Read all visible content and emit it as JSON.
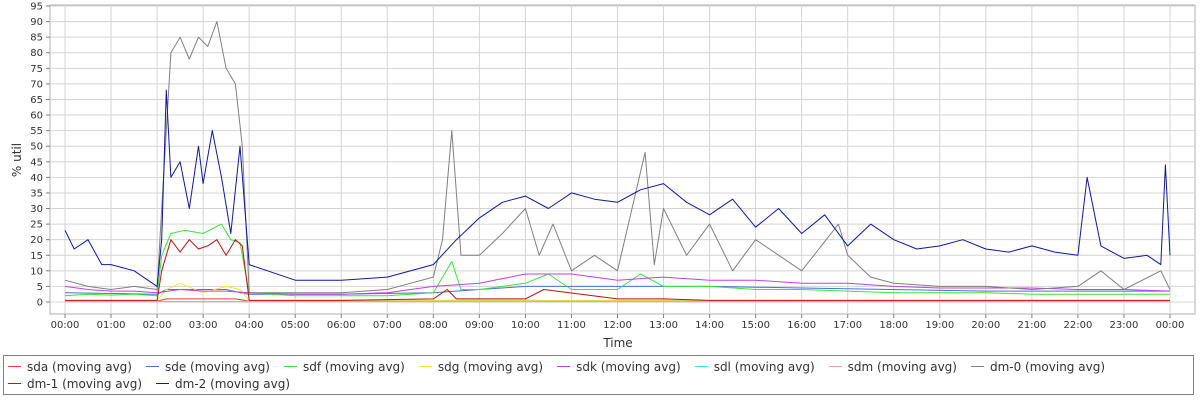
{
  "chart_data": {
    "type": "line",
    "xlabel": "Time",
    "ylabel": "% util",
    "ylim": [
      0,
      95
    ],
    "yticks": [
      0,
      5,
      10,
      15,
      20,
      25,
      30,
      35,
      40,
      45,
      50,
      55,
      60,
      65,
      70,
      75,
      80,
      85,
      90,
      95
    ],
    "xticks": [
      "00:00",
      "01:00",
      "02:00",
      "03:00",
      "04:00",
      "05:00",
      "06:00",
      "07:00",
      "08:00",
      "09:00",
      "10:00",
      "11:00",
      "12:00",
      "13:00",
      "14:00",
      "15:00",
      "16:00",
      "17:00",
      "18:00",
      "19:00",
      "20:00",
      "21:00",
      "22:00",
      "23:00",
      "00:00"
    ],
    "xlim_hours": [
      0,
      24
    ],
    "grid": true,
    "legend_position": "bottom",
    "series": [
      {
        "name": "sda (moving avg)",
        "color": "#e8403a",
        "x": [
          0,
          2,
          2.2,
          3,
          3.7,
          4,
          6,
          8,
          8.3,
          10,
          10.2,
          11,
          12,
          13,
          14,
          16,
          18,
          20,
          22,
          23.5,
          24
        ],
        "y": [
          0.3,
          0.3,
          1,
          1,
          1,
          0.3,
          0.3,
          0.3,
          0.5,
          0.5,
          0.5,
          0.3,
          0.3,
          0.5,
          0.3,
          0.3,
          0.3,
          0.3,
          0.3,
          0.3,
          0.3
        ]
      },
      {
        "name": "sde (moving avg)",
        "color": "#4a6fd8",
        "x": [
          0,
          2,
          2.2,
          3,
          3.5,
          3.8,
          4,
          6,
          8,
          9,
          10,
          12,
          14,
          16,
          18,
          20,
          22,
          24
        ],
        "y": [
          3,
          2.5,
          4,
          4,
          4,
          3,
          2.5,
          2.5,
          3,
          4,
          5,
          5,
          5,
          4.5,
          4,
          3.5,
          3.5,
          3.5
        ]
      },
      {
        "name": "sdf (moving avg)",
        "color": "#3ce23c",
        "x": [
          0,
          0.5,
          1,
          1.5,
          2,
          2.1,
          2.3,
          2.6,
          3,
          3.4,
          3.6,
          3.8,
          4,
          5,
          6,
          7,
          8,
          8.4,
          8.6,
          9,
          10,
          10.5,
          11,
          12,
          12.5,
          13,
          14,
          15,
          16,
          17,
          18,
          19,
          20,
          21,
          22,
          23,
          24
        ],
        "y": [
          2,
          2.5,
          2.2,
          2.5,
          2,
          15,
          22,
          23,
          22,
          25,
          20,
          19,
          3,
          2,
          2,
          2,
          3,
          13,
          4,
          4,
          6,
          9,
          4,
          4,
          9,
          5,
          5,
          4,
          4,
          3.5,
          3,
          3,
          3,
          2.5,
          2.5,
          2.5,
          2.5
        ]
      },
      {
        "name": "sdg (moving avg)",
        "color": "#f5e73c",
        "x": [
          0,
          2,
          2.2,
          2.5,
          3,
          3.5,
          3.8,
          4,
          6,
          8,
          10,
          12,
          14,
          16,
          18,
          20,
          22,
          24
        ],
        "y": [
          0.5,
          0.5,
          4,
          6,
          3,
          5,
          4,
          0.5,
          0.5,
          0.5,
          0.5,
          0.5,
          0.5,
          0.5,
          0.5,
          0.5,
          0.5,
          0.5
        ]
      },
      {
        "name": "sdk (moving avg)",
        "color": "#c040e8",
        "x": [
          0,
          0.5,
          1,
          1.5,
          2,
          2.5,
          3,
          3.5,
          4,
          5,
          6,
          7,
          8,
          9,
          10,
          11,
          12,
          13,
          14,
          15,
          16,
          17,
          18,
          19,
          20,
          21,
          22,
          23,
          24
        ],
        "y": [
          5,
          4,
          3.5,
          3.5,
          3,
          4,
          3.5,
          3.5,
          3,
          2.5,
          2.5,
          3,
          5,
          6,
          9,
          9,
          7,
          8,
          7,
          7,
          6,
          6,
          5,
          4.5,
          4.5,
          4.5,
          4,
          4,
          3.5
        ]
      },
      {
        "name": "sdl (moving avg)",
        "color": "#3ce8e8",
        "x": [
          0,
          4,
          8,
          12,
          16,
          20,
          24
        ],
        "y": [
          0.2,
          0.2,
          0.2,
          0.2,
          0.2,
          0.2,
          0.2
        ]
      },
      {
        "name": "sdm (moving avg)",
        "color": "#f0a0a0",
        "x": [
          0,
          4,
          8,
          12,
          16,
          20,
          24
        ],
        "y": [
          0.1,
          0.1,
          0.1,
          0.1,
          0.1,
          0.1,
          0.1
        ]
      },
      {
        "name": "dm-0 (moving avg)",
        "color": "#808080",
        "x": [
          0,
          0.5,
          1,
          1.5,
          2,
          2.1,
          2.3,
          2.5,
          2.7,
          2.9,
          3.1,
          3.3,
          3.5,
          3.7,
          3.85,
          4,
          5,
          6,
          7,
          7.5,
          8,
          8.2,
          8.4,
          8.6,
          9,
          9.5,
          10,
          10.3,
          10.6,
          11,
          11.5,
          12,
          12.6,
          12.8,
          13,
          13.5,
          14,
          14.5,
          15,
          16,
          16.8,
          17,
          17.5,
          18,
          19,
          20,
          21,
          22,
          22.5,
          23,
          23.8,
          24
        ],
        "y": [
          7,
          5,
          4,
          5,
          4,
          30,
          80,
          85,
          78,
          85,
          82,
          90,
          75,
          70,
          50,
          3,
          3,
          3,
          4,
          6,
          8,
          20,
          55,
          15,
          15,
          22,
          30,
          15,
          25,
          10,
          15,
          10,
          48,
          12,
          30,
          15,
          25,
          10,
          20,
          10,
          25,
          15,
          8,
          6,
          5,
          5,
          4,
          5,
          10,
          4,
          10,
          4
        ]
      },
      {
        "name": "dm-1 (moving avg)",
        "color": "#b81414",
        "x": [
          0,
          2,
          2.1,
          2.3,
          2.5,
          2.7,
          2.9,
          3.1,
          3.3,
          3.5,
          3.7,
          3.85,
          4,
          6,
          8,
          8.3,
          8.5,
          10,
          10.4,
          12,
          13,
          14,
          16,
          18,
          20,
          22,
          24
        ],
        "y": [
          0.5,
          0.5,
          10,
          20,
          16,
          20,
          17,
          18,
          20,
          15,
          20,
          18,
          0.5,
          0.5,
          1,
          4,
          1,
          1,
          4,
          1,
          1,
          0.5,
          0.5,
          0.5,
          0.5,
          0.5,
          0.5
        ]
      },
      {
        "name": "dm-2 (moving avg)",
        "color": "#10189e",
        "x": [
          0,
          0.2,
          0.5,
          0.8,
          1,
          1.5,
          2,
          2.1,
          2.2,
          2.3,
          2.5,
          2.7,
          2.9,
          3,
          3.2,
          3.4,
          3.6,
          3.8,
          4,
          5,
          6,
          7,
          8,
          8.5,
          9,
          9.5,
          10,
          10.5,
          11,
          11.5,
          12,
          12.5,
          13,
          13.5,
          14,
          14.5,
          15,
          15.5,
          16,
          16.5,
          17,
          17.5,
          18,
          18.5,
          19,
          19.5,
          20,
          20.5,
          21,
          21.5,
          22,
          22.2,
          22.5,
          23,
          23.5,
          23.8,
          23.9,
          24
        ],
        "y": [
          23,
          17,
          20,
          12,
          12,
          10,
          5,
          20,
          68,
          40,
          45,
          30,
          50,
          38,
          55,
          40,
          22,
          50,
          12,
          7,
          7,
          8,
          12,
          20,
          27,
          32,
          34,
          30,
          35,
          33,
          32,
          36,
          38,
          32,
          28,
          33,
          24,
          30,
          22,
          28,
          18,
          25,
          20,
          17,
          18,
          20,
          17,
          16,
          18,
          16,
          15,
          40,
          18,
          14,
          15,
          12,
          44,
          15
        ]
      }
    ]
  }
}
